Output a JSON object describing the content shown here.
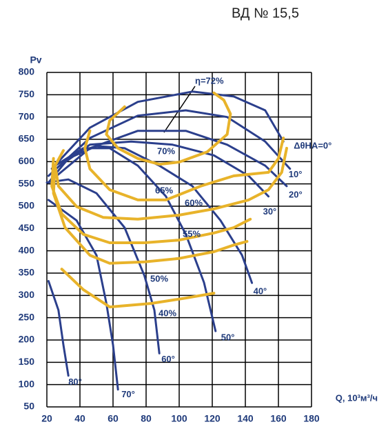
{
  "chart_data": {
    "type": "line",
    "title": "ВД № 15,5",
    "y_label": "Pv",
    "x_label": "Q, 10³м³/ч",
    "xlim": [
      20,
      180
    ],
    "xticks": [
      20,
      40,
      60,
      80,
      100,
      120,
      140,
      160,
      180
    ],
    "ylim": [
      50,
      800
    ],
    "yticks": [
      50,
      100,
      150,
      200,
      250,
      300,
      350,
      400,
      450,
      500,
      550,
      600,
      650,
      700,
      750,
      800
    ],
    "grid": true,
    "series": [
      {
        "name": "ΔθНА=0°",
        "color": "#2b3f8c",
        "x": [
          23,
          46,
          75,
          108,
          133,
          152,
          163
        ],
        "values": [
          584,
          676,
          734,
          757,
          746,
          715,
          645
        ]
      },
      {
        "name": "10°",
        "color": "#2b3f8c",
        "x": [
          21,
          46,
          75,
          104,
          129,
          152,
          167
        ],
        "values": [
          568,
          653,
          703,
          715,
          700,
          645,
          584
        ]
      },
      {
        "name": "20°",
        "color": "#2b3f8c",
        "x": [
          21,
          46,
          75,
          104,
          129,
          152,
          165
        ],
        "values": [
          553,
          630,
          669,
          669,
          638,
          591,
          545
        ]
      },
      {
        "name": "30°",
        "color": "#2b3f8c",
        "x": [
          28,
          46,
          71,
          96,
          121,
          142,
          154
        ],
        "values": [
          591,
          638,
          645,
          638,
          614,
          568,
          522
        ]
      },
      {
        "name": "40°",
        "color": "#2b3f8c",
        "x": [
          21,
          33,
          50,
          67,
          88,
          108,
          125,
          138,
          144
        ],
        "values": [
          553,
          607,
          635,
          630,
          591,
          545,
          468,
          390,
          328
        ]
      },
      {
        "name": "50°",
        "color": "#2b3f8c",
        "x": [
          25,
          42,
          58,
          75,
          92,
          104,
          115,
          122
        ],
        "values": [
          591,
          630,
          630,
          591,
          522,
          437,
          329,
          220
        ]
      },
      {
        "name": "60°",
        "color": "#2b3f8c",
        "x": [
          20,
          33,
          50,
          67,
          79,
          85,
          88
        ],
        "values": [
          553,
          560,
          529,
          452,
          344,
          267,
          170
        ]
      },
      {
        "name": "70°",
        "color": "#2b3f8c",
        "x": [
          21,
          38,
          50,
          56,
          60,
          63
        ],
        "values": [
          514,
          468,
          390,
          282,
          189,
          89
        ]
      },
      {
        "name": "80°",
        "color": "#2b3f8c",
        "x": [
          21,
          27,
          30,
          33
        ],
        "values": [
          332,
          267,
          189,
          120
        ]
      },
      {
        "color": "#e8b32a",
        "x": [
          67,
          58,
          56,
          63,
          75,
          88,
          100,
          117,
          129,
          131,
          127,
          121
        ],
        "values": [
          723,
          692,
          661,
          630,
          607,
          594,
          599,
          622,
          661,
          707,
          738,
          754
        ]
      },
      {
        "color": "#e8b32a",
        "x": [
          46,
          43,
          46,
          58,
          75,
          92,
          113,
          133,
          154,
          160,
          163
        ],
        "values": [
          669,
          630,
          584,
          537,
          514,
          514,
          545,
          568,
          576,
          607,
          653
        ]
      },
      {
        "color": "#e8b32a",
        "x": [
          30,
          25,
          27,
          38,
          54,
          75,
          100,
          121,
          142,
          154,
          162,
          165
        ],
        "values": [
          625,
          591,
          545,
          499,
          475,
          471,
          480,
          494,
          514,
          537,
          576,
          630
        ]
      },
      {
        "color": "#e8b32a",
        "x": [
          24,
          23,
          29,
          42,
          58,
          79,
          100,
          121,
          133,
          143
        ],
        "values": [
          607,
          545,
          483,
          437,
          418,
          418,
          424,
          440,
          452,
          471
        ]
      },
      {
        "color": "#e8b32a",
        "x": [
          25,
          24,
          31,
          46,
          58,
          79,
          100,
          121,
          133,
          141
        ],
        "values": [
          591,
          529,
          452,
          390,
          372,
          375,
          383,
          398,
          413,
          421
        ]
      },
      {
        "color": "#e8b32a",
        "x": [
          29,
          42,
          58,
          83,
          104,
          121
        ],
        "values": [
          359,
          313,
          274,
          282,
          294,
          305
        ]
      }
    ],
    "annotations": [
      "η=72%",
      "70%",
      "65%",
      "60%",
      "55%",
      "50%",
      "40%"
    ]
  }
}
